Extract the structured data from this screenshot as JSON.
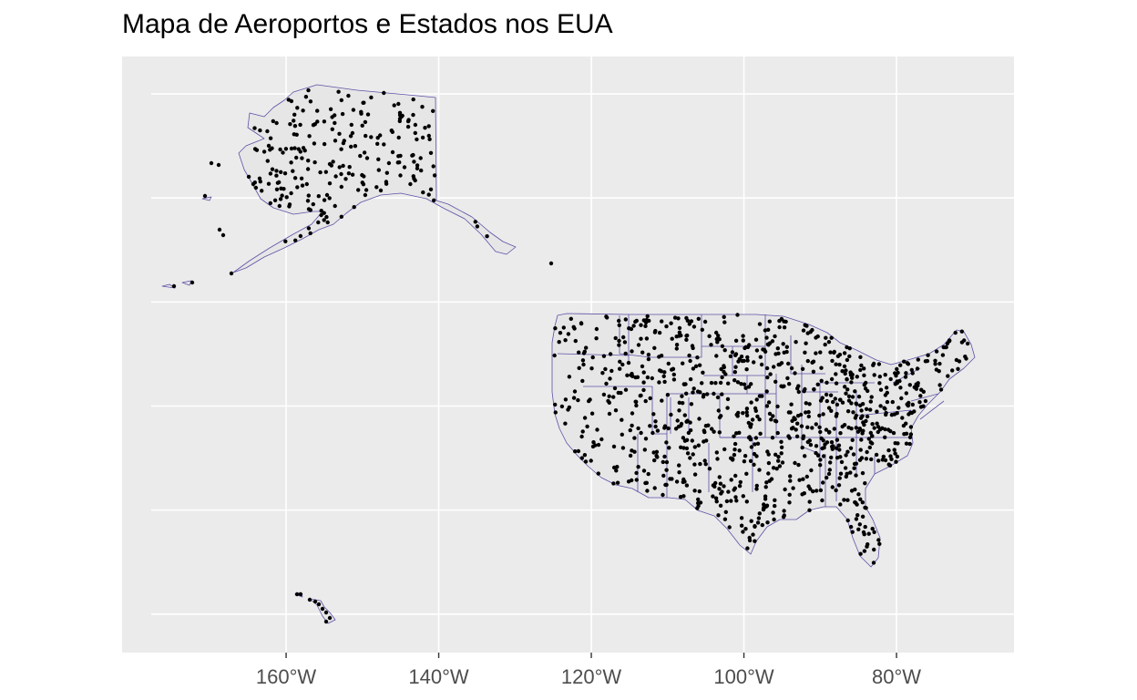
{
  "title": "Mapa de Aeroportos e Estados nos EUA",
  "colors": {
    "panel_background": "#EBEBEB",
    "gridline": "#FFFFFF",
    "land_fill": "#E6E6E6",
    "state_border": "#5C52A6",
    "airport_point": "#000000",
    "axis_text": "#4D4D4D"
  },
  "map": {
    "projection": "equirectangular (lon/lat)",
    "lon_range": [
      -181.5,
      -64.6
    ],
    "lat_range": [
      16.3,
      73.6
    ],
    "x_breaks": [
      -160,
      -140,
      -120,
      -100,
      -80
    ],
    "x_tick_labels": [
      "160°W",
      "140°W",
      "120°W",
      "100°W",
      "80°W"
    ],
    "y_breaks": [
      20,
      30,
      40,
      50,
      60,
      70
    ],
    "y_tick_labels_shown": false,
    "grid": true,
    "layers": [
      "us-states",
      "airports"
    ]
  }
}
